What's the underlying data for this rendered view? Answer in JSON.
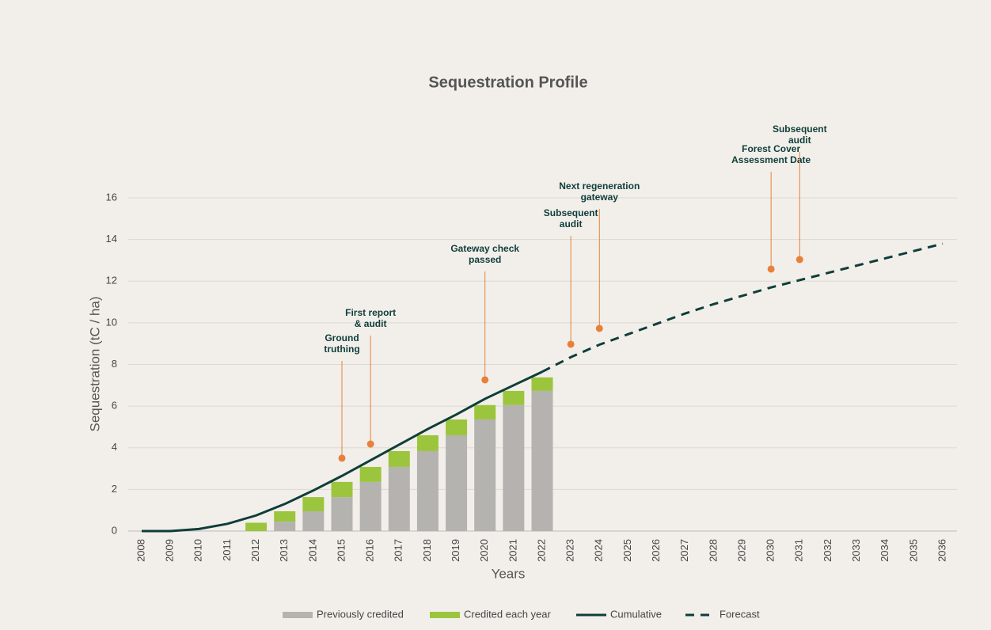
{
  "chart_data": {
    "type": "bar",
    "title": "Sequestration Profile",
    "x_label": "Years",
    "y_label": "Sequestration (tC / ha)",
    "categories": [
      "2008",
      "2009",
      "2010",
      "2011",
      "2012",
      "2013",
      "2014",
      "2015",
      "2016",
      "2017",
      "2018",
      "2019",
      "2020",
      "2021",
      "2022",
      "2023",
      "2024",
      "2025",
      "2026",
      "2027",
      "2028",
      "2029",
      "2030",
      "2031",
      "2032",
      "2033",
      "2034",
      "2035",
      "2036"
    ],
    "series": [
      {
        "name": "Previously credited",
        "kind": "bar",
        "color": "#b5b3b0",
        "values": [
          null,
          null,
          null,
          null,
          0,
          0.45,
          0.95,
          1.63,
          2.36,
          3.08,
          3.84,
          4.6,
          5.36,
          6.05,
          6.73,
          null,
          null,
          null,
          null,
          null,
          null,
          null,
          null,
          null,
          null,
          null,
          null,
          null,
          null
        ]
      },
      {
        "name": "Credited each year",
        "kind": "bar",
        "color": "#9bc53d",
        "values": [
          null,
          null,
          null,
          null,
          0.4,
          0.5,
          0.68,
          0.73,
          0.72,
          0.76,
          0.76,
          0.76,
          0.69,
          0.68,
          0.65,
          null,
          null,
          null,
          null,
          null,
          null,
          null,
          null,
          null,
          null,
          null,
          null,
          null,
          null
        ]
      },
      {
        "name": "Cumulative",
        "kind": "line",
        "color": "#0f3d3a",
        "values": [
          0,
          0,
          0.1,
          0.35,
          0.75,
          1.3,
          1.95,
          2.65,
          3.4,
          4.15,
          4.9,
          5.6,
          6.35,
          7.0,
          7.65,
          null,
          null,
          null,
          null,
          null,
          null,
          null,
          null,
          null,
          null,
          null,
          null,
          null,
          null
        ]
      },
      {
        "name": "Forecast",
        "kind": "dashed-line",
        "color": "#0f3d3a",
        "values": [
          null,
          null,
          null,
          null,
          null,
          null,
          null,
          null,
          null,
          null,
          null,
          null,
          null,
          null,
          7.65,
          8.35,
          8.95,
          9.45,
          9.95,
          10.45,
          10.9,
          11.3,
          11.7,
          12.05,
          12.4,
          12.75,
          13.1,
          13.45,
          13.8
        ]
      }
    ],
    "annotations": [
      {
        "x": "2015",
        "y": 3.5,
        "lines": [
          "Ground",
          "truthing"
        ]
      },
      {
        "x": "2016",
        "y": 4.18,
        "lines": [
          "First report",
          "& audit"
        ]
      },
      {
        "x": "2020",
        "y": 7.26,
        "lines": [
          "Gateway check",
          "passed"
        ]
      },
      {
        "x": "2023",
        "y": 8.97,
        "lines": [
          "Subsequent",
          "audit"
        ]
      },
      {
        "x": "2024",
        "y": 9.73,
        "lines": [
          "Next regeneration",
          "gateway"
        ]
      },
      {
        "x": "2030",
        "y": 12.58,
        "lines": [
          "Forest Cover",
          "Assessment Date"
        ]
      },
      {
        "x": "2031",
        "y": 13.04,
        "lines": [
          "Subsequent",
          "audit"
        ]
      }
    ],
    "annotation_color": "#e8803a",
    "ylim": [
      0,
      16
    ],
    "yticks": [
      0,
      2,
      4,
      6,
      8,
      10,
      12,
      14,
      16
    ],
    "grid": true,
    "legend": "bottom"
  }
}
